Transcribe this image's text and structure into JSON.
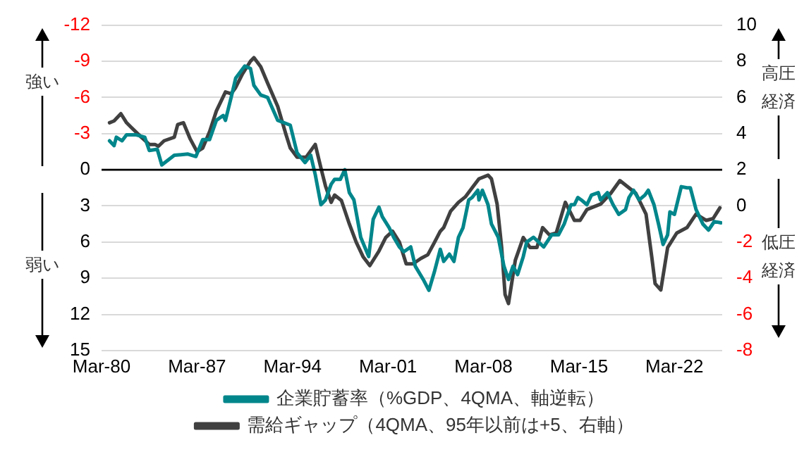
{
  "chart_data": {
    "type": "line",
    "xlim": [
      "1980-03",
      "2025-09"
    ],
    "xticks": [
      {
        "value": "1980-03",
        "label": "Mar-80"
      },
      {
        "value": "1987-03",
        "label": "Mar-87"
      },
      {
        "value": "1994-03",
        "label": "Mar-94"
      },
      {
        "value": "2001-03",
        "label": "Mar-01"
      },
      {
        "value": "2008-03",
        "label": "Mar-08"
      },
      {
        "value": "2015-03",
        "label": "Mar-15"
      },
      {
        "value": "2022-03",
        "label": "Mar-22"
      }
    ],
    "ylim": [
      15,
      -12
    ],
    "yticks": [
      -12,
      -9,
      -6,
      -3,
      0,
      3,
      6,
      9,
      12,
      15
    ],
    "y2lim": [
      -8,
      10
    ],
    "y2ticks": [
      -8,
      -6,
      -4,
      -2,
      0,
      2,
      4,
      6,
      8,
      10
    ],
    "grid": "y",
    "legend": "bottom",
    "marker": "none",
    "line_style": "solid",
    "ref_lines": [
      {
        "axis": "y",
        "value": 0,
        "color": "#000000"
      }
    ],
    "annotations": [
      "強い",
      "弱い",
      "高圧経済",
      "低圧経済"
    ],
    "series": [
      {
        "name": "企業貯蓄率（%GDP、4QMA、軸逆転）",
        "color": "#00868b",
        "x": [
          "1980-10",
          "1981-02",
          "1981-04",
          "1981-09",
          "1982-01",
          "1982-09",
          "1983-05",
          "1983-09",
          "1984-04",
          "1984-08",
          "1985-07",
          "1986-07",
          "1987-02",
          "1987-08",
          "1988-02",
          "1988-08",
          "1989-02",
          "1989-04",
          "1989-09",
          "1990-01",
          "1990-09",
          "1991-02",
          "1991-05",
          "1991-11",
          "1992-05",
          "1993-02",
          "1994-01",
          "1994-07",
          "1995-02",
          "1995-07",
          "1995-11",
          "1996-04",
          "1996-08",
          "1997-01",
          "1997-04",
          "1997-09",
          "1998-01",
          "1998-05",
          "1998-09",
          "1999-03",
          "1999-10",
          "2000-02",
          "2000-07",
          "2000-10",
          "2001-04",
          "2001-08",
          "2002-01",
          "2002-05",
          "2002-11",
          "2003-03",
          "2003-10",
          "2004-03",
          "2004-08",
          "2005-01",
          "2005-04",
          "2005-09",
          "2006-01",
          "2006-05",
          "2006-09",
          "2007-02",
          "2007-05",
          "2007-10",
          "2007-11",
          "2008-02",
          "2008-07",
          "2008-10",
          "2009-04",
          "2009-09",
          "2010-01",
          "2010-05",
          "2010-09",
          "2011-02",
          "2011-05",
          "2011-11",
          "2012-08",
          "2013-03",
          "2013-09",
          "2014-02",
          "2014-08",
          "2014-11",
          "2015-02",
          "2015-05",
          "2015-10",
          "2016-02",
          "2016-08",
          "2016-10",
          "2017-04",
          "2017-09",
          "2018-02",
          "2018-08",
          "2018-11",
          "2019-03",
          "2019-08",
          "2020-01",
          "2020-04",
          "2020-09",
          "2021-01",
          "2021-05",
          "2021-09",
          "2021-11",
          "2022-03",
          "2022-09",
          "2023-02",
          "2023-05",
          "2023-10",
          "2024-04",
          "2024-09",
          "2025-02",
          "2025-08"
        ],
        "values": [
          -2.4,
          -2.0,
          -2.7,
          -2.4,
          -2.9,
          -2.9,
          -2.7,
          -1.6,
          -1.7,
          -0.4,
          -1.2,
          -1.3,
          -1.1,
          -2.5,
          -2.5,
          -4.1,
          -4.5,
          -4.1,
          -6.0,
          -7.6,
          -8.6,
          -8.4,
          -7.0,
          -6.2,
          -6.0,
          -4.1,
          -3.7,
          -1.4,
          -0.6,
          -1.2,
          0.4,
          2.9,
          2.5,
          1.2,
          0.8,
          0.8,
          0.0,
          1.9,
          2.5,
          5.6,
          7.2,
          4.1,
          3.1,
          3.9,
          4.8,
          5.6,
          6.4,
          6.8,
          6.4,
          8.0,
          9.1,
          10.0,
          8.4,
          6.6,
          7.6,
          7.0,
          7.6,
          5.6,
          4.8,
          2.5,
          2.3,
          1.7,
          2.5,
          1.7,
          2.9,
          4.5,
          5.6,
          8.0,
          9.1,
          8.0,
          8.7,
          7.2,
          6.0,
          5.6,
          6.4,
          5.4,
          5.4,
          4.5,
          2.9,
          2.9,
          2.3,
          2.5,
          2.9,
          2.1,
          1.9,
          2.5,
          1.9,
          2.9,
          3.7,
          3.3,
          2.3,
          1.7,
          2.5,
          2.1,
          1.7,
          2.9,
          4.5,
          6.2,
          5.4,
          3.5,
          3.7,
          1.4,
          1.5,
          1.5,
          3.3,
          4.5,
          5.0,
          4.3,
          4.4
        ]
      },
      {
        "name": "需給ギャップ（4QMA、95年以前は+5、右軸）",
        "color": "#404040",
        "axis": "y2",
        "x": [
          "1980-10",
          "1981-02",
          "1981-08",
          "1982-01",
          "1982-05",
          "1983-02",
          "1983-09",
          "1984-02",
          "1984-05",
          "1984-10",
          "1985-07",
          "1985-10",
          "1986-03",
          "1986-09",
          "1987-03",
          "1987-08",
          "1988-02",
          "1988-08",
          "1989-04",
          "1989-09",
          "1990-01",
          "1990-07",
          "1991-02",
          "1991-05",
          "1991-11",
          "1992-05",
          "1993-02",
          "1993-09",
          "1994-01",
          "1994-07",
          "1995-03",
          "1995-11",
          "1996-04",
          "1996-08",
          "1997-01",
          "1997-04",
          "1997-10",
          "1998-05",
          "1998-11",
          "1999-05",
          "1999-11",
          "2000-07",
          "2001-01",
          "2001-07",
          "2002-01",
          "2002-07",
          "2003-01",
          "2003-08",
          "2004-02",
          "2004-08",
          "2005-01",
          "2005-04",
          "2005-10",
          "2006-05",
          "2006-11",
          "2007-05",
          "2007-11",
          "2008-07",
          "2008-10",
          "2009-03",
          "2009-07",
          "2009-10",
          "2010-01",
          "2010-07",
          "2011-02",
          "2011-08",
          "2012-02",
          "2012-07",
          "2013-01",
          "2013-07",
          "2014-03",
          "2014-11",
          "2015-04",
          "2015-10",
          "2016-10",
          "2017-07",
          "2018-03",
          "2018-11",
          "2019-05",
          "2020-02",
          "2020-07",
          "2020-10",
          "2021-03",
          "2021-09",
          "2022-05",
          "2023-02",
          "2023-10",
          "2024-07",
          "2025-01",
          "2025-07"
        ],
        "values": [
          4.6,
          4.7,
          5.1,
          4.6,
          4.35,
          3.8,
          3.4,
          3.4,
          3.3,
          3.6,
          3.8,
          4.5,
          4.6,
          3.7,
          3.0,
          3.2,
          4.1,
          5.25,
          6.3,
          6.2,
          6.55,
          7.3,
          8.0,
          8.2,
          7.7,
          6.8,
          5.5,
          4.0,
          3.2,
          2.7,
          2.7,
          3.4,
          2.1,
          1.1,
          0.2,
          0.6,
          0.3,
          -1.0,
          -2.0,
          -2.8,
          -3.3,
          -2.5,
          -1.75,
          -1.4,
          -2.0,
          -3.2,
          -3.2,
          -2.9,
          -2.7,
          -2.0,
          -1.4,
          -1.2,
          -0.3,
          0.2,
          0.5,
          1.0,
          1.5,
          1.7,
          1.5,
          0.1,
          -2.3,
          -4.9,
          -5.4,
          -3.0,
          -1.75,
          -2.3,
          -2.3,
          -1.2,
          -1.6,
          -1.5,
          0.2,
          -0.8,
          -0.8,
          -0.2,
          0.1,
          0.7,
          1.4,
          1.0,
          0.7,
          -0.45,
          -2.8,
          -4.3,
          -4.65,
          -2.3,
          -1.5,
          -1.2,
          -0.45,
          -0.8,
          -0.7,
          -0.1
        ]
      }
    ]
  }
}
